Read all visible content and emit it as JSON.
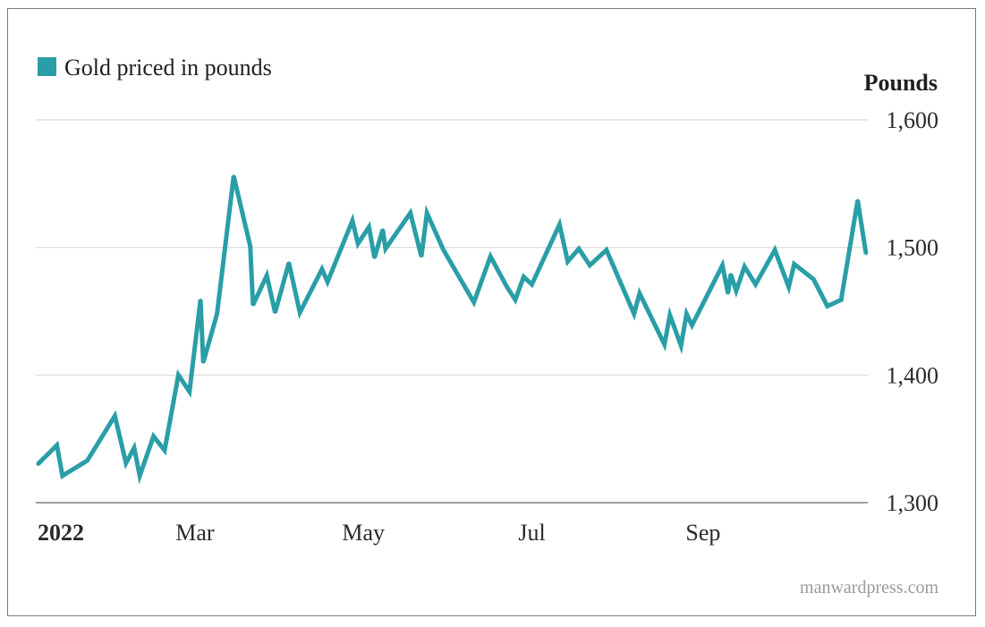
{
  "colors": {
    "series": "#2a9ea7",
    "grid": "#d9d9d9",
    "text": "#1f1f1f",
    "source": "#9a9a9a"
  },
  "legend": {
    "label": "Gold priced in pounds"
  },
  "axis": {
    "ylabel": "Pounds"
  },
  "source": "manwardpress.com",
  "chart_data": {
    "type": "line",
    "title": "",
    "xlabel": "",
    "ylabel": "Pounds",
    "ylim": [
      1300,
      1600
    ],
    "yticks": [
      1300,
      1400,
      1500,
      1600
    ],
    "ytick_labels": [
      "1,300",
      "1,400",
      "1,500",
      "1,600"
    ],
    "xticks": [
      {
        "label": "2022",
        "date": "2022-01-03",
        "bold": true
      },
      {
        "label": "Mar",
        "date": "2022-03-01",
        "bold": false
      },
      {
        "label": "May",
        "date": "2022-05-01",
        "bold": false
      },
      {
        "label": "Jul",
        "date": "2022-07-01",
        "bold": false
      },
      {
        "label": "Sep",
        "date": "2022-09-01",
        "bold": false
      }
    ],
    "grid": true,
    "legend_position": "top-left",
    "series": [
      {
        "name": "Gold priced in pounds",
        "points": [
          [
            "2022-01-03",
            1330
          ],
          [
            "2022-01-10",
            1345
          ],
          [
            "2022-01-12",
            1321
          ],
          [
            "2022-01-21",
            1333
          ],
          [
            "2022-01-31",
            1368
          ],
          [
            "2022-02-04",
            1331
          ],
          [
            "2022-02-07",
            1343
          ],
          [
            "2022-02-09",
            1321
          ],
          [
            "2022-02-14",
            1352
          ],
          [
            "2022-02-18",
            1341
          ],
          [
            "2022-02-23",
            1400
          ],
          [
            "2022-02-27",
            1387
          ],
          [
            "2022-03-03",
            1459
          ],
          [
            "2022-03-04",
            1410
          ],
          [
            "2022-03-09",
            1448
          ],
          [
            "2022-03-15",
            1556
          ],
          [
            "2022-03-21",
            1501
          ],
          [
            "2022-03-22",
            1455
          ],
          [
            "2022-03-27",
            1478
          ],
          [
            "2022-03-30",
            1449
          ],
          [
            "2022-04-04",
            1488
          ],
          [
            "2022-04-08",
            1449
          ],
          [
            "2022-04-16",
            1483
          ],
          [
            "2022-04-18",
            1473
          ],
          [
            "2022-04-27",
            1521
          ],
          [
            "2022-04-29",
            1503
          ],
          [
            "2022-05-03",
            1516
          ],
          [
            "2022-05-05",
            1492
          ],
          [
            "2022-05-08",
            1514
          ],
          [
            "2022-05-09",
            1499
          ],
          [
            "2022-05-18",
            1527
          ],
          [
            "2022-05-22",
            1493
          ],
          [
            "2022-05-24",
            1527
          ],
          [
            "2022-05-30",
            1498
          ],
          [
            "2022-06-10",
            1457
          ],
          [
            "2022-06-16",
            1493
          ],
          [
            "2022-06-22",
            1469
          ],
          [
            "2022-06-25",
            1459
          ],
          [
            "2022-06-28",
            1477
          ],
          [
            "2022-07-01",
            1471
          ],
          [
            "2022-07-11",
            1518
          ],
          [
            "2022-07-14",
            1489
          ],
          [
            "2022-07-18",
            1499
          ],
          [
            "2022-07-22",
            1486
          ],
          [
            "2022-07-28",
            1498
          ],
          [
            "2022-08-07",
            1448
          ],
          [
            "2022-08-09",
            1464
          ],
          [
            "2022-08-18",
            1424
          ],
          [
            "2022-08-20",
            1447
          ],
          [
            "2022-08-24",
            1423
          ],
          [
            "2022-08-26",
            1448
          ],
          [
            "2022-08-28",
            1439
          ],
          [
            "2022-09-08",
            1486
          ],
          [
            "2022-09-10",
            1464
          ],
          [
            "2022-09-11",
            1479
          ],
          [
            "2022-09-13",
            1466
          ],
          [
            "2022-09-16",
            1485
          ],
          [
            "2022-09-20",
            1471
          ],
          [
            "2022-09-27",
            1498
          ],
          [
            "2022-10-02",
            1469
          ],
          [
            "2022-10-04",
            1487
          ],
          [
            "2022-10-11",
            1475
          ],
          [
            "2022-10-16",
            1454
          ],
          [
            "2022-10-21",
            1459
          ],
          [
            "2022-10-27",
            1537
          ],
          [
            "2022-10-30",
            1495
          ]
        ]
      }
    ]
  }
}
